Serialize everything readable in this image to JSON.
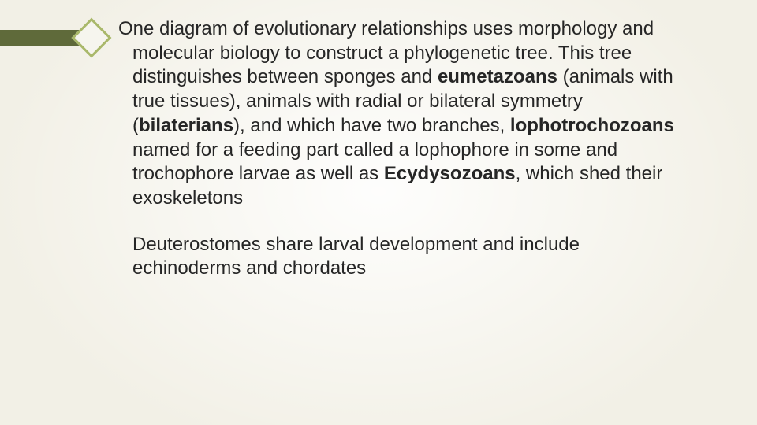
{
  "slide": {
    "background_color": "#f2f0e6",
    "vignette_center_color": "#ffffff",
    "marker": {
      "bar_color": "#5f6a3a",
      "diamond_border_color": "#a9b86a",
      "diamond_fill_color": "#f6f5ee"
    },
    "text_color": "#262626",
    "font_size_pt": 18,
    "paragraphs": [
      {
        "runs": [
          {
            "t": "One diagram of evolutionary relationships uses morphology and molecular biology to construct a phylogenetic tree. This tree distinguishes between sponges and ",
            "b": false
          },
          {
            "t": "eumetazoans",
            "b": true
          },
          {
            "t": " (animals with true tissues), animals with radial or bilateral symmetry (",
            "b": false
          },
          {
            "t": "bilaterians",
            "b": true
          },
          {
            "t": "), and which have two branches, ",
            "b": false
          },
          {
            "t": "lophotrochozoans",
            "b": true
          },
          {
            "t": " named for a feeding part called a lophophore in some and trochophore larvae as well as ",
            "b": false
          },
          {
            "t": "Ecydysozoans",
            "b": true
          },
          {
            "t": ", which shed their exoskeletons",
            "b": false
          }
        ]
      },
      {
        "runs": [
          {
            "t": "Deuterostomes share larval development and include echinoderms and chordates",
            "b": false
          }
        ]
      }
    ]
  }
}
